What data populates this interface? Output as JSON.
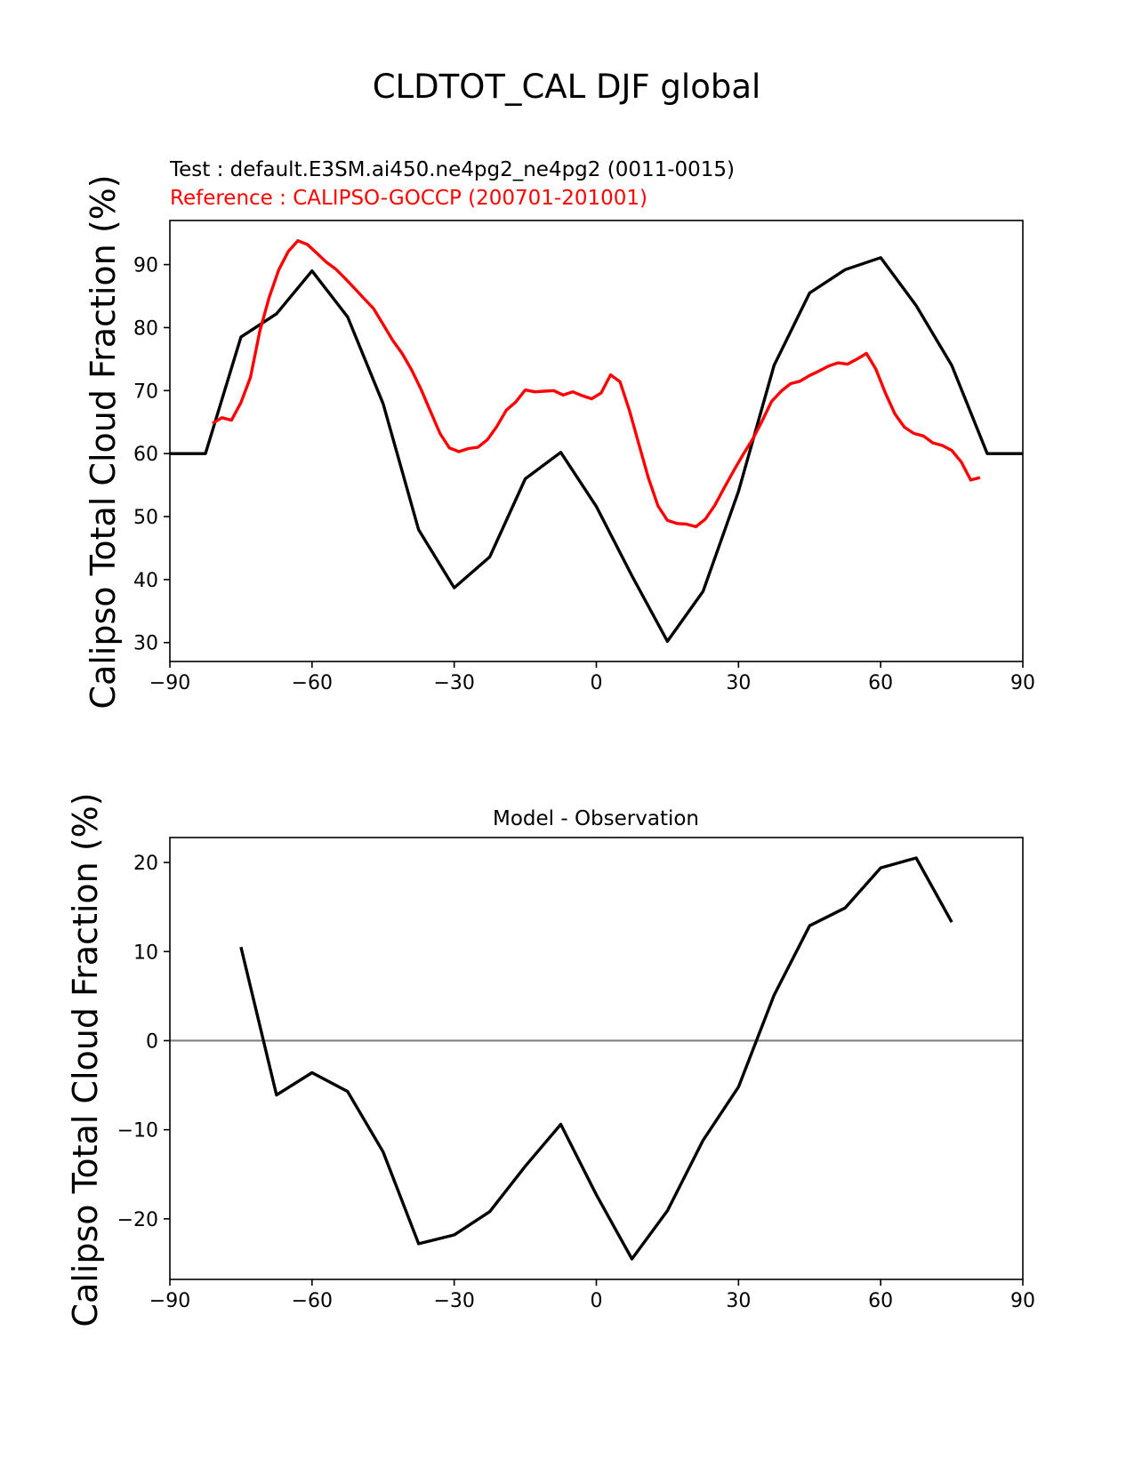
{
  "figure": {
    "title": "CLDTOT_CAL DJF global"
  },
  "chart_data": [
    {
      "type": "line",
      "test_label": "Test : default.E3SM.ai450.ne4pg2_ne4pg2 (0011-0015)",
      "ref_label": "Reference : CALIPSO-GOCCP (200701-201001)",
      "ylabel": "Calipso Total Cloud Fraction (%)",
      "xlim": [
        -90,
        90
      ],
      "ylim": [
        27,
        97
      ],
      "xticks": [
        -90,
        -60,
        -30,
        0,
        30,
        60,
        90
      ],
      "yticks": [
        30,
        40,
        50,
        60,
        70,
        80,
        90
      ],
      "series": [
        {
          "color": "#000000",
          "x": [
            -90,
            -82.5,
            -75,
            -67.5,
            -60,
            -52.5,
            -45,
            -37.5,
            -30,
            -22.5,
            -15,
            -7.5,
            0,
            7.5,
            15,
            22.5,
            30,
            37.5,
            45,
            52.5,
            60,
            67.5,
            75,
            82.5,
            90
          ],
          "y": [
            60,
            60,
            78.5,
            82.2,
            89,
            81.7,
            67.9,
            47.9,
            38.7,
            43.6,
            56,
            60.2,
            51.6,
            40.6,
            30.2,
            38.1,
            54,
            74,
            85.5,
            89.2,
            91.1,
            83.5,
            74,
            60,
            60
          ]
        },
        {
          "color": "#ff0000",
          "x": [
            -81,
            -79,
            -77,
            -75,
            -73,
            -71,
            -69,
            -67,
            -65,
            -63,
            -61,
            -59,
            -57,
            -55,
            -53,
            -51,
            -49,
            -47,
            -45,
            -43,
            -41,
            -39,
            -37,
            -35,
            -33,
            -31,
            -29,
            -27,
            -25,
            -23,
            -21,
            -19,
            -17,
            -15,
            -13,
            -11,
            -9,
            -7,
            -5,
            -3,
            -1,
            1,
            3,
            5,
            7,
            9,
            11,
            13,
            15,
            17,
            19,
            21,
            23,
            25,
            27,
            29,
            31,
            33,
            35,
            37,
            39,
            41,
            43,
            45,
            47,
            49,
            51,
            53,
            55,
            57,
            59,
            61,
            63,
            65,
            67,
            69,
            71,
            73,
            75,
            77,
            79,
            81
          ],
          "y": [
            64.8,
            65.7,
            65.3,
            68.1,
            72.1,
            79.5,
            84.9,
            89.2,
            92.1,
            93.8,
            93.2,
            91.8,
            90.4,
            89.3,
            87.8,
            86.2,
            84.6,
            83,
            80.5,
            78,
            75.9,
            73.3,
            70.2,
            66.7,
            63.2,
            60.9,
            60.3,
            60.8,
            61,
            62.2,
            64.3,
            66.9,
            68.2,
            70.1,
            69.8,
            69.9,
            70,
            69.3,
            69.8,
            69.2,
            68.7,
            69.6,
            72.5,
            71.4,
            66.8,
            61.4,
            56.1,
            51.7,
            49.4,
            48.9,
            48.8,
            48.4,
            49.6,
            51.8,
            54.6,
            57.3,
            59.9,
            62.3,
            65.2,
            68.3,
            69.9,
            71.1,
            71.5,
            72.4,
            73.1,
            73.9,
            74.4,
            74.2,
            75,
            75.9,
            73.4,
            69.6,
            66.3,
            64.2,
            63.2,
            62.8,
            61.7,
            61.3,
            60.5,
            58.7,
            55.8,
            56.2
          ]
        }
      ]
    },
    {
      "type": "line",
      "title": "Model - Observation",
      "ylabel": "Calipso Total Cloud Fraction (%)",
      "xlim": [
        -90,
        90
      ],
      "ylim": [
        -26.8,
        22.8
      ],
      "xticks": [
        -90,
        -60,
        -30,
        0,
        30,
        60,
        90
      ],
      "yticks": [
        -20,
        -10,
        0,
        10,
        20
      ],
      "zero_line_color": "#808080",
      "series": [
        {
          "color": "#000000",
          "x": [
            -75,
            -67.5,
            -60,
            -52.5,
            -45,
            -37.5,
            -30,
            -22.5,
            -15,
            -7.5,
            0,
            7.5,
            15,
            22.5,
            30,
            37.5,
            45,
            52.5,
            60,
            67.5,
            75
          ],
          "y": [
            10.5,
            -6.1,
            -3.6,
            -5.7,
            -12.5,
            -22.8,
            -21.8,
            -19.2,
            -14.1,
            -9.4,
            -17.3,
            -24.5,
            -19.1,
            -11.2,
            -5.2,
            5.1,
            12.9,
            14.9,
            19.4,
            20.5,
            13.3
          ]
        }
      ]
    }
  ]
}
